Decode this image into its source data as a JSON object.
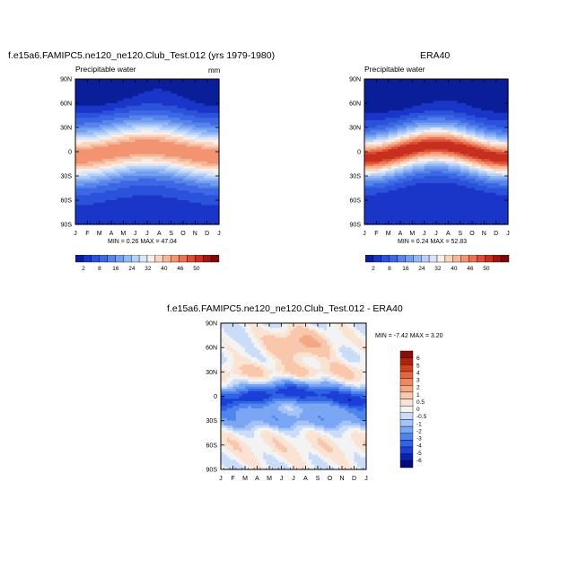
{
  "palette": {
    "blue_red": [
      "#0a1e9a",
      "#1a36c8",
      "#2a52db",
      "#3c68e6",
      "#5684ea",
      "#729ff0",
      "#93b8f4",
      "#b7d0f8",
      "#d8e6fa",
      "#faeee6",
      "#f9d5c0",
      "#f6b597",
      "#f29472",
      "#eb7252",
      "#dc4e33",
      "#c62e1e",
      "#a5150f",
      "#7d0a0a"
    ],
    "diff": [
      "#050a80",
      "#0b1fb0",
      "#1c3fd6",
      "#3062e6",
      "#4f86ee",
      "#7aa6f3",
      "#a4c3f6",
      "#cadcf8",
      "#f3f3f3",
      "#fbe3d4",
      "#f8c7ac",
      "#f4a883",
      "#ee8860",
      "#e5653f",
      "#d0421f",
      "#b3200d",
      "#8a0d06"
    ]
  },
  "chart_data": [
    {
      "id": "model",
      "type": "heatmap",
      "title": "f.e15a6.FAMIPC5.ne120_ne120.Club_Test.012 (yrs 1979-1980)",
      "subtitle": "Precipitable water",
      "units": "mm",
      "x_ticks": [
        "J",
        "F",
        "M",
        "A",
        "M",
        "J",
        "J",
        "A",
        "S",
        "O",
        "N",
        "D",
        "J"
      ],
      "y_ticks": [
        "90N",
        "60N",
        "30N",
        "0",
        "30S",
        "60S",
        "90S"
      ],
      "ylim": [
        -90,
        90
      ],
      "stats": "MIN =  0.26 MAX =  47.04",
      "stat_min": 0.26,
      "stat_max": 47.04
    },
    {
      "id": "obs",
      "type": "heatmap",
      "title": "ERA40",
      "subtitle": "Precipitable water",
      "units": "",
      "x_ticks": [
        "J",
        "F",
        "M",
        "A",
        "M",
        "J",
        "J",
        "A",
        "S",
        "O",
        "N",
        "D",
        "J"
      ],
      "y_ticks": [
        "90N",
        "60N",
        "30N",
        "0",
        "30S",
        "60S",
        "90S"
      ],
      "ylim": [
        -90,
        90
      ],
      "stats": "MIN =  0.24 MAX =  52.83",
      "stat_min": 0.24,
      "stat_max": 52.83
    },
    {
      "id": "diff",
      "type": "heatmap",
      "title": "f.e15a6.FAMIPC5.ne120_ne120.Club_Test.012 - ERA40",
      "subtitle": "",
      "units": "",
      "x_ticks": [
        "J",
        "F",
        "M",
        "A",
        "M",
        "J",
        "J",
        "A",
        "S",
        "O",
        "N",
        "D",
        "J"
      ],
      "y_ticks": [
        "90N",
        "60N",
        "30N",
        "0",
        "30S",
        "60S",
        "90S"
      ],
      "ylim": [
        -90,
        90
      ],
      "stats": "MIN =  -7.42 MAX =   3.20",
      "stat_min": -7.42,
      "stat_max": 3.2
    }
  ],
  "colorbar_main": {
    "labels": [
      "2",
      "8",
      "16",
      "24",
      "32",
      "40",
      "46",
      "50"
    ]
  },
  "colorbar_diff": {
    "labels": [
      "6",
      "5",
      "4",
      "3",
      "2",
      "1",
      "0.5",
      "0",
      "-0.5",
      "-1",
      "-2",
      "-3",
      "-4",
      "-5",
      "-6"
    ]
  }
}
